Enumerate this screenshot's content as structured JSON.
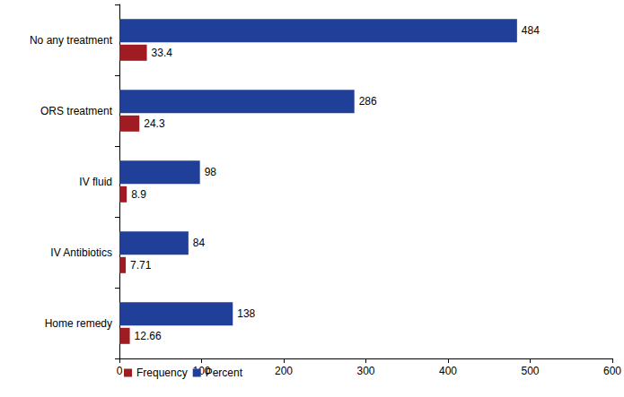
{
  "chart_data": {
    "type": "bar",
    "orientation": "horizontal",
    "categories": [
      "Home remedy",
      "IV Antibiotics",
      "IV fluid",
      "ORS treatment",
      "No any treatment"
    ],
    "series": [
      {
        "name": "Frequency",
        "color": "#9e1c22",
        "values": [
          12.66,
          7.71,
          8.9,
          24.3,
          33.4
        ]
      },
      {
        "name": "Percent",
        "color": "#1f3f99",
        "values": [
          138,
          84,
          98,
          286,
          484
        ]
      }
    ],
    "xlim": [
      0,
      600
    ],
    "xticks": [
      0,
      100,
      200,
      300,
      400,
      500,
      600
    ],
    "grid": false,
    "legend": "lower left",
    "data_labels": true
  }
}
